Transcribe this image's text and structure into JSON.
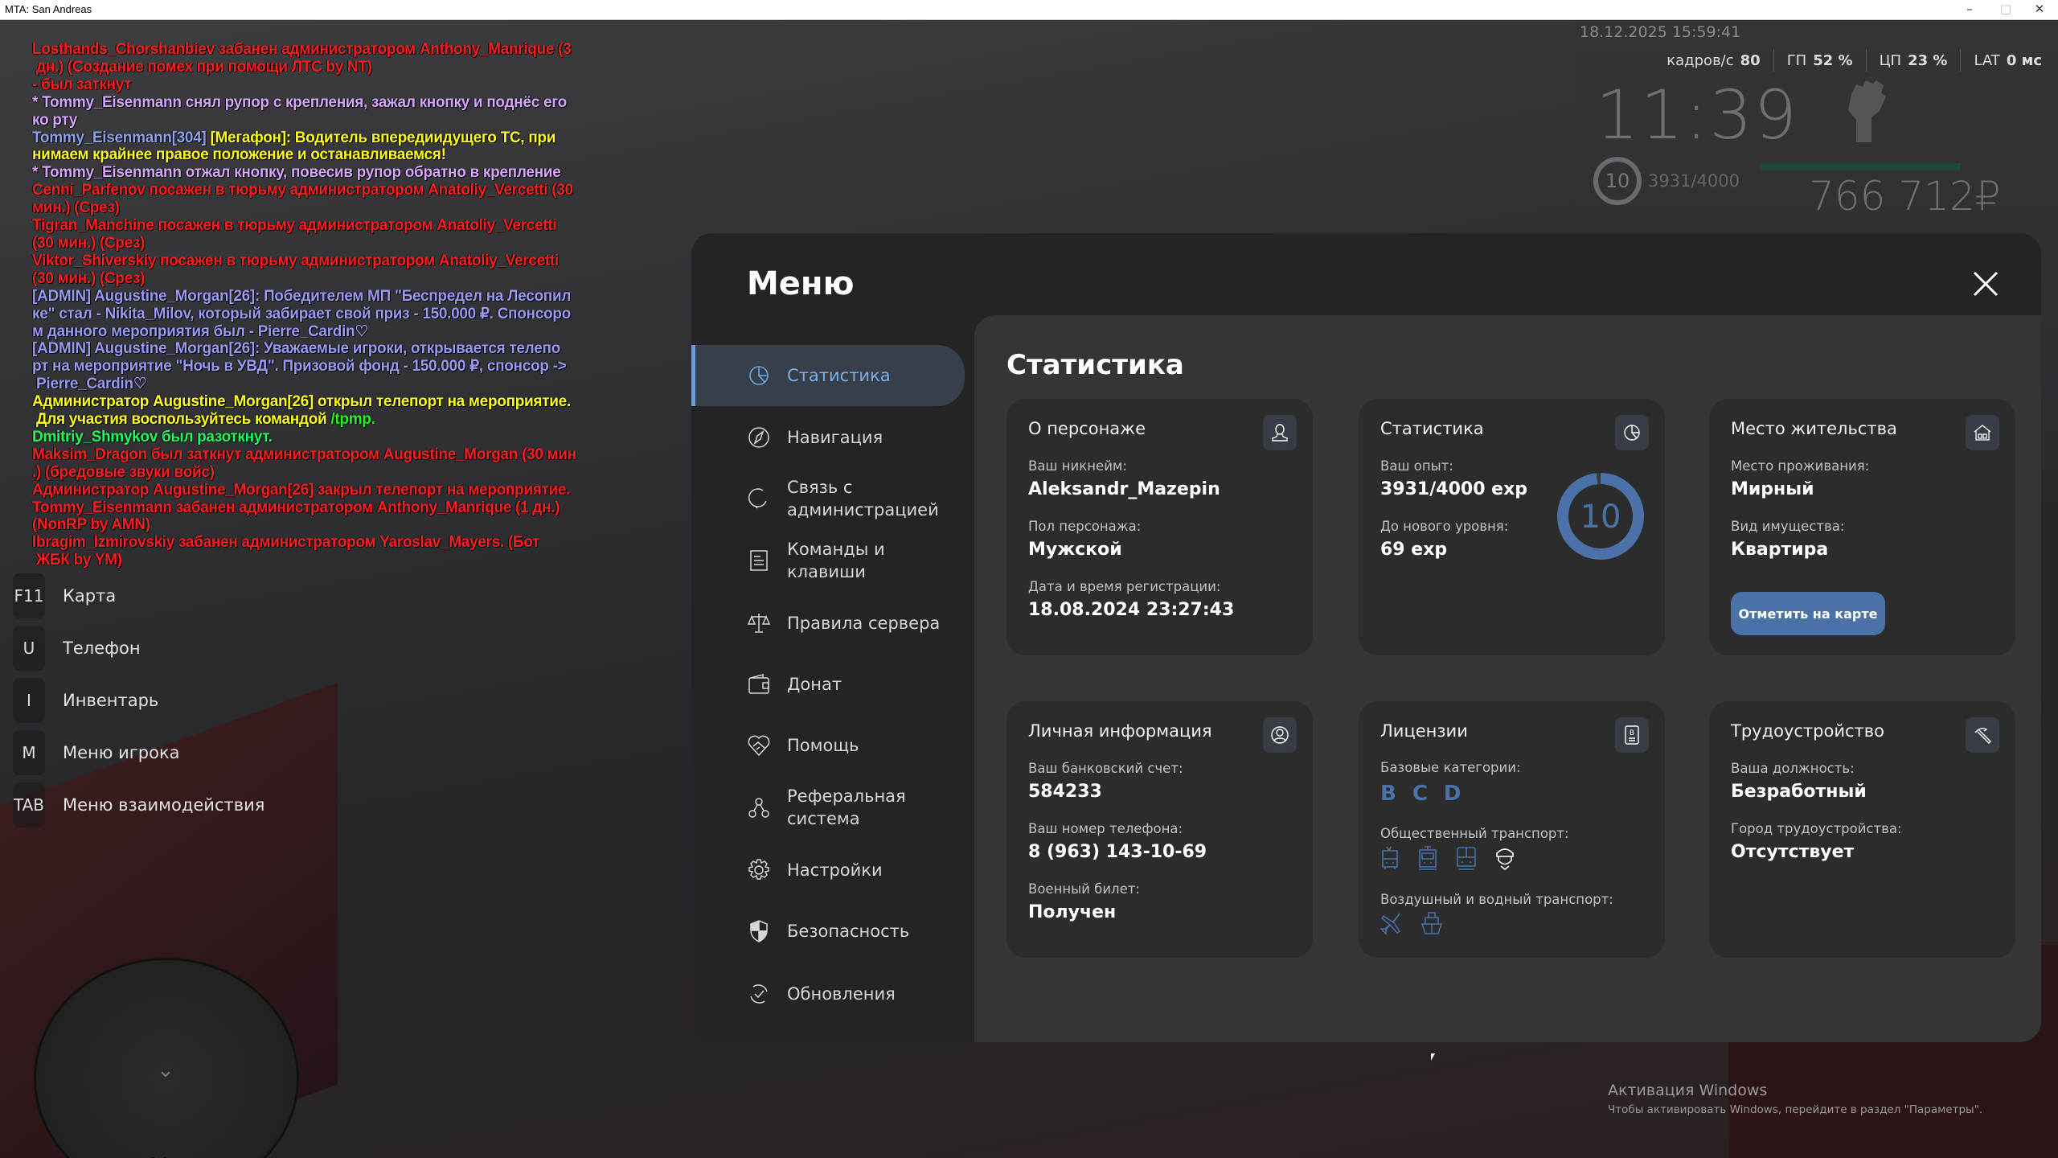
{
  "window": {
    "title": "MTA: San Andreas",
    "controls": [
      "–",
      "□",
      "✕"
    ]
  },
  "chat": [
    [
      [
        "Losthands_Chorshanbiev забанен администратором Anthony_Manrique (3",
        "#ff1e1e"
      ]
    ],
    [
      [
        " дн.) (Создание помех при помощи ЛТС by NT)",
        "#ff1e1e"
      ]
    ],
    [
      [
        "- был заткнут",
        "#ff1e1e"
      ]
    ],
    [
      [
        "* Tommy_Eisenmann снял рупор с крепления, зажал кнопку и поднёс его",
        "#d8a6ff"
      ]
    ],
    [
      [
        "ко рту",
        "#d8a6ff"
      ]
    ],
    [
      [
        "Tommy_Eisenmann[304] ",
        "#8ea2ee"
      ],
      [
        "[Мегафон]: Водитель впередиидущего ТС, при",
        "#ffff1e"
      ]
    ],
    [
      [
        "нимаем крайнее правое положение и останавливаемся!",
        "#ffff1e"
      ]
    ],
    [
      [
        "* Tommy_Eisenmann отжал кнопку, повесив рупор обратно в крепление",
        "#d8a6ff"
      ]
    ],
    [
      [
        "Cenni_Parfenov посажен в тюрьму администратором Anatoliy_Vercetti (30",
        "#ff1e1e"
      ]
    ],
    [
      [
        "мин.) (Срез)",
        "#ff1e1e"
      ]
    ],
    [
      [
        "Tigran_Manchine посажен в тюрьму администратором Anatoliy_Vercetti",
        "#ff1e1e"
      ]
    ],
    [
      [
        "(30 мин.) (Срез)",
        "#ff1e1e"
      ]
    ],
    [
      [
        "Viktor_Shiverskiy посажен в тюрьму администратором Anatoliy_Vercetti",
        "#ff1e1e"
      ]
    ],
    [
      [
        "(30 мин.) (Срез)",
        "#ff1e1e"
      ]
    ],
    [
      [
        "[ADMIN] Augustine_Morgan[26]: Победителем МП \"Беспредел на Лесопил",
        "#9a9af5"
      ]
    ],
    [
      [
        "ке\" стал - Nikita_Milov, который забирает свой приз - 150.000 ₽. Спонсоро",
        "#9a9af5"
      ]
    ],
    [
      [
        "м данного мероприятия был - Pierre_Cardin♡",
        "#9a9af5"
      ]
    ],
    [
      [
        "[ADMIN] Augustine_Morgan[26]: Уважаемые игроки, открывается телепо",
        "#9a9af5"
      ]
    ],
    [
      [
        "рт на мероприятие \"Ночь в УВД\". Призовой фонд - 150.000 ₽, спонсор ->",
        "#9a9af5"
      ]
    ],
    [
      [
        " Pierre_Cardin♡",
        "#9a9af5"
      ]
    ],
    [
      [
        "Администратор Augustine_Morgan[26] открыл телепорт на мероприятие.",
        "#ffff1e"
      ]
    ],
    [
      [
        " Для участия воспользуйтесь командой ",
        "#ffff1e"
      ],
      [
        "/tpmp.",
        "#1eff1e"
      ]
    ],
    [
      [
        "Dmitriy_Shmykov был разоткнут.",
        "#1eff5a"
      ]
    ],
    [
      [
        "Maksim_Dragon был заткнут администратором Augustine_Morgan (30 мин",
        "#ff1e1e"
      ]
    ],
    [
      [
        ".) (бредовые звуки войс)",
        "#ff1e1e"
      ]
    ],
    [
      [
        "Администратор Augustine_Morgan[26] закрыл телепорт на мероприятие.",
        "#ff1e1e"
      ]
    ],
    [
      [
        "Tommy_Eisenmann забанен администратором Anthony_Manrique (1 дн.)",
        "#ff1e1e"
      ]
    ],
    [
      [
        "(NonRP by AMN)",
        "#ff1e1e"
      ]
    ],
    [
      [
        "Ibragim_Izmirovskiy забанен администратором Yaroslav_Mayers. (Бот",
        "#ff1e1e"
      ]
    ],
    [
      [
        " ЖБК by YM)",
        "#ff1e1e"
      ]
    ]
  ],
  "hotkeys": [
    {
      "key": "F11",
      "label": "Карта"
    },
    {
      "key": "U",
      "label": "Телефон"
    },
    {
      "key": "I",
      "label": "Инвентарь"
    },
    {
      "key": "M",
      "label": "Меню игрока"
    },
    {
      "key": "TAB",
      "label": "Меню взаимодействия"
    }
  ],
  "hud": {
    "datetime": "18.12.2025 15:59:41",
    "fps_label": "кадров/с",
    "fps": "80",
    "gpu_label": "ГП",
    "gpu": "52 %",
    "cpu_label": "ЦП",
    "cpu": "23 %",
    "lat_label": "LAT",
    "lat": "0 мс",
    "clock": "11:39",
    "level": "10",
    "exp": "3931/4000",
    "health_fraction": 1.0,
    "money": "766 712₽",
    "weapon_icon": "fist-icon"
  },
  "menu": {
    "title": "Меню",
    "close_icon": "close-icon",
    "nav": [
      {
        "label": "Статистика",
        "icon": "pie-chart-icon",
        "active": true
      },
      {
        "label": "Навигация",
        "icon": "compass-icon"
      },
      {
        "label": "Связь с\nадминистрацией",
        "icon": "refresh-phone-icon"
      },
      {
        "label": "Команды и\nклавиши",
        "icon": "list-icon"
      },
      {
        "label": "Правила сервера",
        "icon": "scales-icon"
      },
      {
        "label": "Донат",
        "icon": "wallet-icon"
      },
      {
        "label": "Помощь",
        "icon": "heart-handshake-icon"
      },
      {
        "label": "Реферальная\nсистема",
        "icon": "referral-icon"
      },
      {
        "label": "Настройки",
        "icon": "gear-icon"
      },
      {
        "label": "Безопасность",
        "icon": "shield-icon"
      },
      {
        "label": "Обновления",
        "icon": "update-icon"
      }
    ]
  },
  "stats": {
    "heading": "Статистика",
    "character": {
      "title": "О персонаже",
      "icon": "user-icon",
      "fields": [
        {
          "label": "Ваш никнейм:",
          "value": "Aleksandr_Mazepin"
        },
        {
          "label": "Пол персонажа:",
          "value": "Мужской"
        },
        {
          "label": "Дата и время регистрации:",
          "value": "18.08.2024 23:27:43"
        }
      ]
    },
    "statistics": {
      "title": "Статистика",
      "icon": "pie-chart-icon",
      "fields": [
        {
          "label": "Ваш опыт:",
          "value": "3931/4000 exp"
        },
        {
          "label": "До нового уровня:",
          "value": "69 exp"
        }
      ],
      "level": "10",
      "exp_current": 3931,
      "exp_max": 4000,
      "accent": "#4a72a8"
    },
    "residence": {
      "title": "Место жительства",
      "icon": "house-icon",
      "fields": [
        {
          "label": "Место проживания:",
          "value": "Мирный"
        },
        {
          "label": "Вид имущества:",
          "value": "Квартира"
        }
      ],
      "button": "Отметить на карте"
    },
    "personal": {
      "title": "Личная информация",
      "icon": "user-circle-icon",
      "fields": [
        {
          "label": "Ваш банковский счет:",
          "value": "584233"
        },
        {
          "label": "Ваш номер телефона:",
          "value": "8 (963) 143-10-69"
        },
        {
          "label": "Военный билет:",
          "value": "Получен"
        }
      ]
    },
    "licenses": {
      "title": "Лицензии",
      "icon": "license-icon",
      "basic_label": "Базовые категории:",
      "basic": [
        "B",
        "C",
        "D"
      ],
      "public_label": "Общественный транспорт:",
      "public_icons": [
        "trolleybus-icon",
        "tram-icon",
        "train-icon",
        "pilot-cap-icon"
      ],
      "air_label": "Воздушный и водный транспорт:",
      "air_icons": [
        "airplane-icon",
        "ship-icon"
      ]
    },
    "employment": {
      "title": "Трудоустройство",
      "icon": "pickaxe-icon",
      "fields": [
        {
          "label": "Ваша должность:",
          "value": "Безработный"
        },
        {
          "label": "Город трудоустройства:",
          "value": "Отсутствует"
        }
      ]
    }
  },
  "windows_activation": {
    "title": "Активация Windows",
    "text": "Чтобы активировать Windows, перейдите в раздел \"Параметры\"."
  }
}
